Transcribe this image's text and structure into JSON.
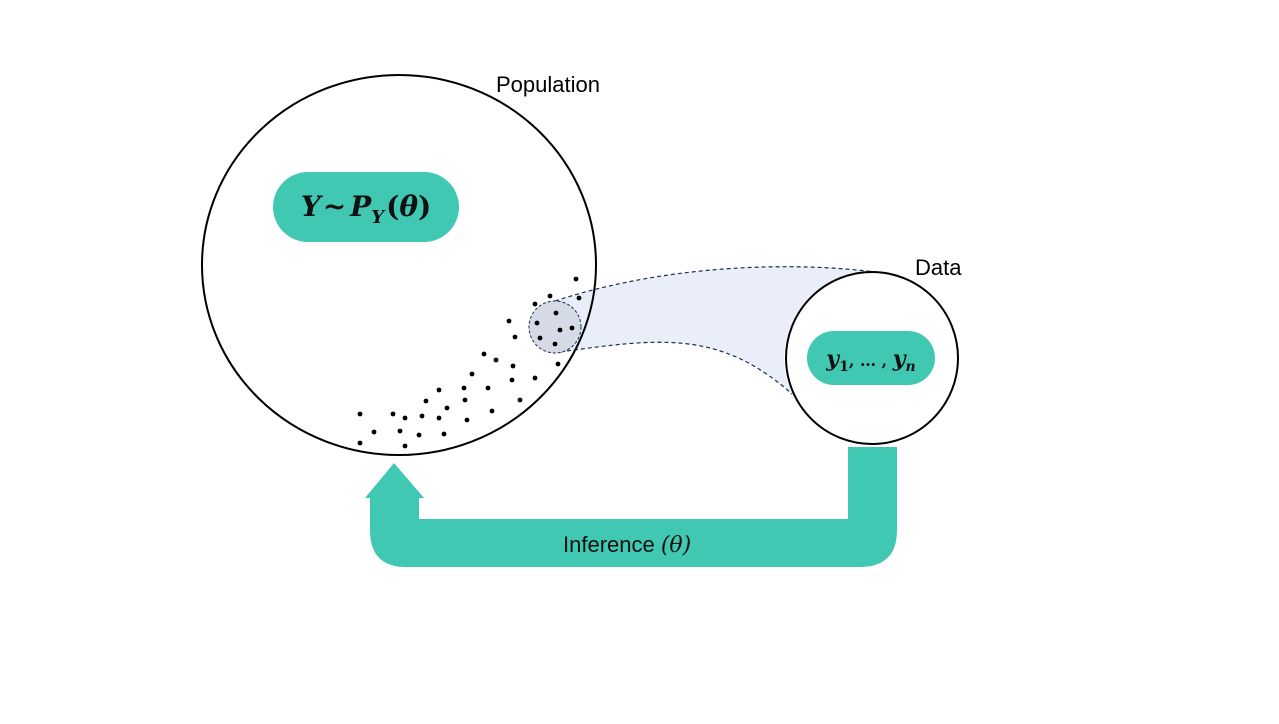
{
  "diagram": {
    "population_label": "Population",
    "data_label": "Data",
    "population_formula": {
      "Y": "Y",
      "tilde": "~",
      "P": "P",
      "subscript": "Y",
      "open_paren": "(",
      "theta": "θ",
      "close_paren": ")"
    },
    "data_formula": {
      "y1": "y",
      "sub1": "1",
      "middle": ", … , ",
      "yn": "y",
      "subn": "n"
    },
    "inference_label": "Inference ",
    "inference_param": "(θ)",
    "colors": {
      "accent": "#40C8B2",
      "sample_fill": "#E9EEF8",
      "sample_circle": "#D5DBE6",
      "dash": "#1F2D4D",
      "outline": "#000000"
    }
  }
}
